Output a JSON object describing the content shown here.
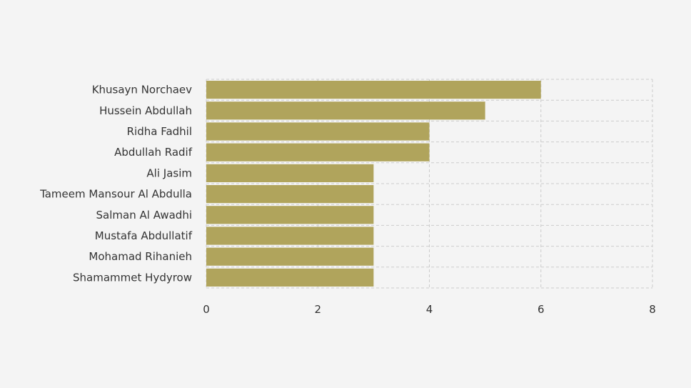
{
  "colors": {
    "background": "#f4f4f4",
    "bar": "#b0a45c",
    "grid": "#cccccc",
    "text": "#333333"
  },
  "chart_data": {
    "type": "bar",
    "orientation": "horizontal",
    "title": "",
    "xlabel": "",
    "ylabel": "",
    "xlim": [
      0,
      8
    ],
    "x_ticks": [
      0,
      2,
      4,
      6,
      8
    ],
    "grid": true,
    "categories": [
      "Khusayn Norchaev",
      "Hussein Abdullah",
      "Ridha Fadhil",
      "Abdullah Radif",
      "Ali Jasim",
      "Tameem Mansour Al Abdulla",
      "Salman Al Awadhi",
      "Mustafa Abdullatif",
      "Mohamad Rihanieh",
      "Shamammet Hydyrow"
    ],
    "values": [
      6,
      5,
      4,
      4,
      3,
      3,
      3,
      3,
      3,
      3
    ]
  }
}
